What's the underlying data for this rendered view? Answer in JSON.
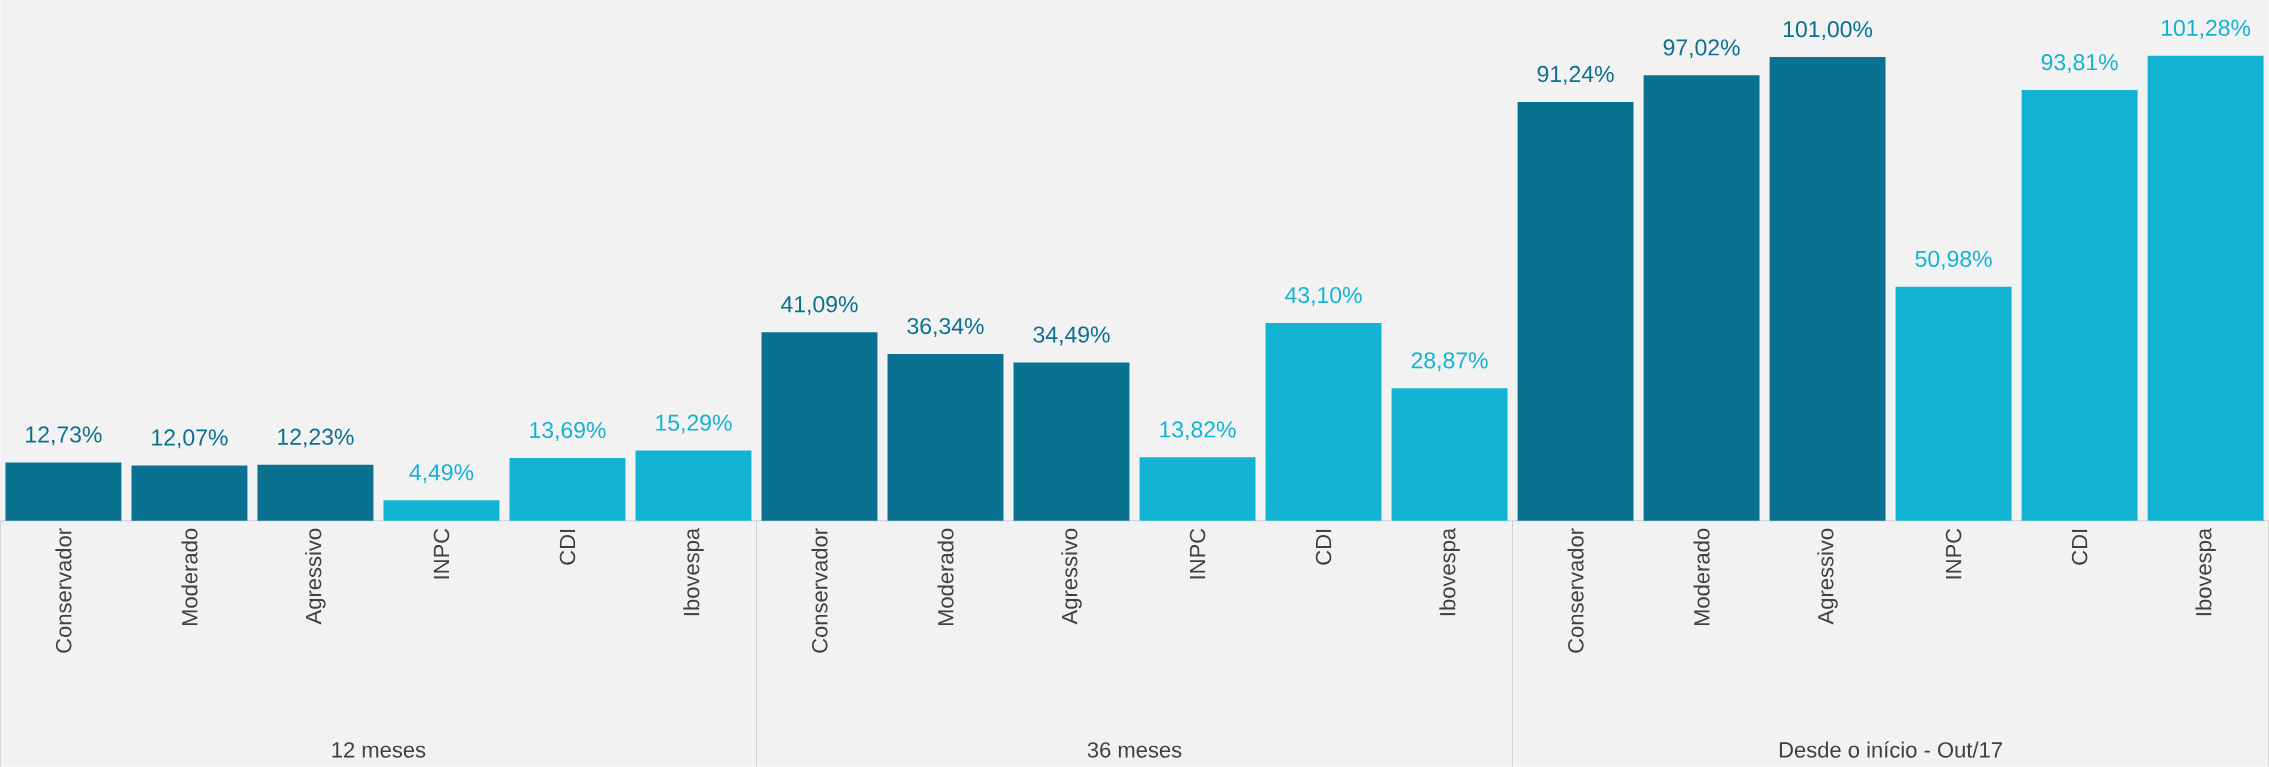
{
  "chart_data": {
    "type": "bar",
    "categories": [
      "Conservador",
      "Moderado",
      "Agressivo",
      "INPC",
      "CDI",
      "Ibovespa",
      "Conservador",
      "Moderado",
      "Agressivo",
      "INPC",
      "CDI",
      "Ibovespa",
      "Conservador",
      "Moderado",
      "Agressivo",
      "INPC",
      "CDI",
      "Ibovespa"
    ],
    "values": [
      12.73,
      12.07,
      12.23,
      4.49,
      13.69,
      15.29,
      41.09,
      36.34,
      34.49,
      13.82,
      43.1,
      28.87,
      91.24,
      97.02,
      101.0,
      50.98,
      93.81,
      101.28
    ],
    "value_labels": [
      "12,73%",
      "12,07%",
      "12,23%",
      "4,49%",
      "13,69%",
      "15,29%",
      "41,09%",
      "36,34%",
      "34,49%",
      "13,82%",
      "43,10%",
      "28,87%",
      "91,24%",
      "97,02%",
      "101,00%",
      "50,98%",
      "93,81%",
      "101,28%"
    ],
    "colors": [
      "#0a7191",
      "#0a7191",
      "#0a7191",
      "#12b3d3",
      "#12b3d3",
      "#12b3d3",
      "#0a7191",
      "#0a7191",
      "#0a7191",
      "#12b3d3",
      "#12b3d3",
      "#12b3d3",
      "#0a7191",
      "#0a7191",
      "#0a7191",
      "#12b3d3",
      "#12b3d3",
      "#12b3d3"
    ],
    "annotations": [
      "12 meses",
      "36 meses",
      "Desde o início - Out/17"
    ]
  }
}
